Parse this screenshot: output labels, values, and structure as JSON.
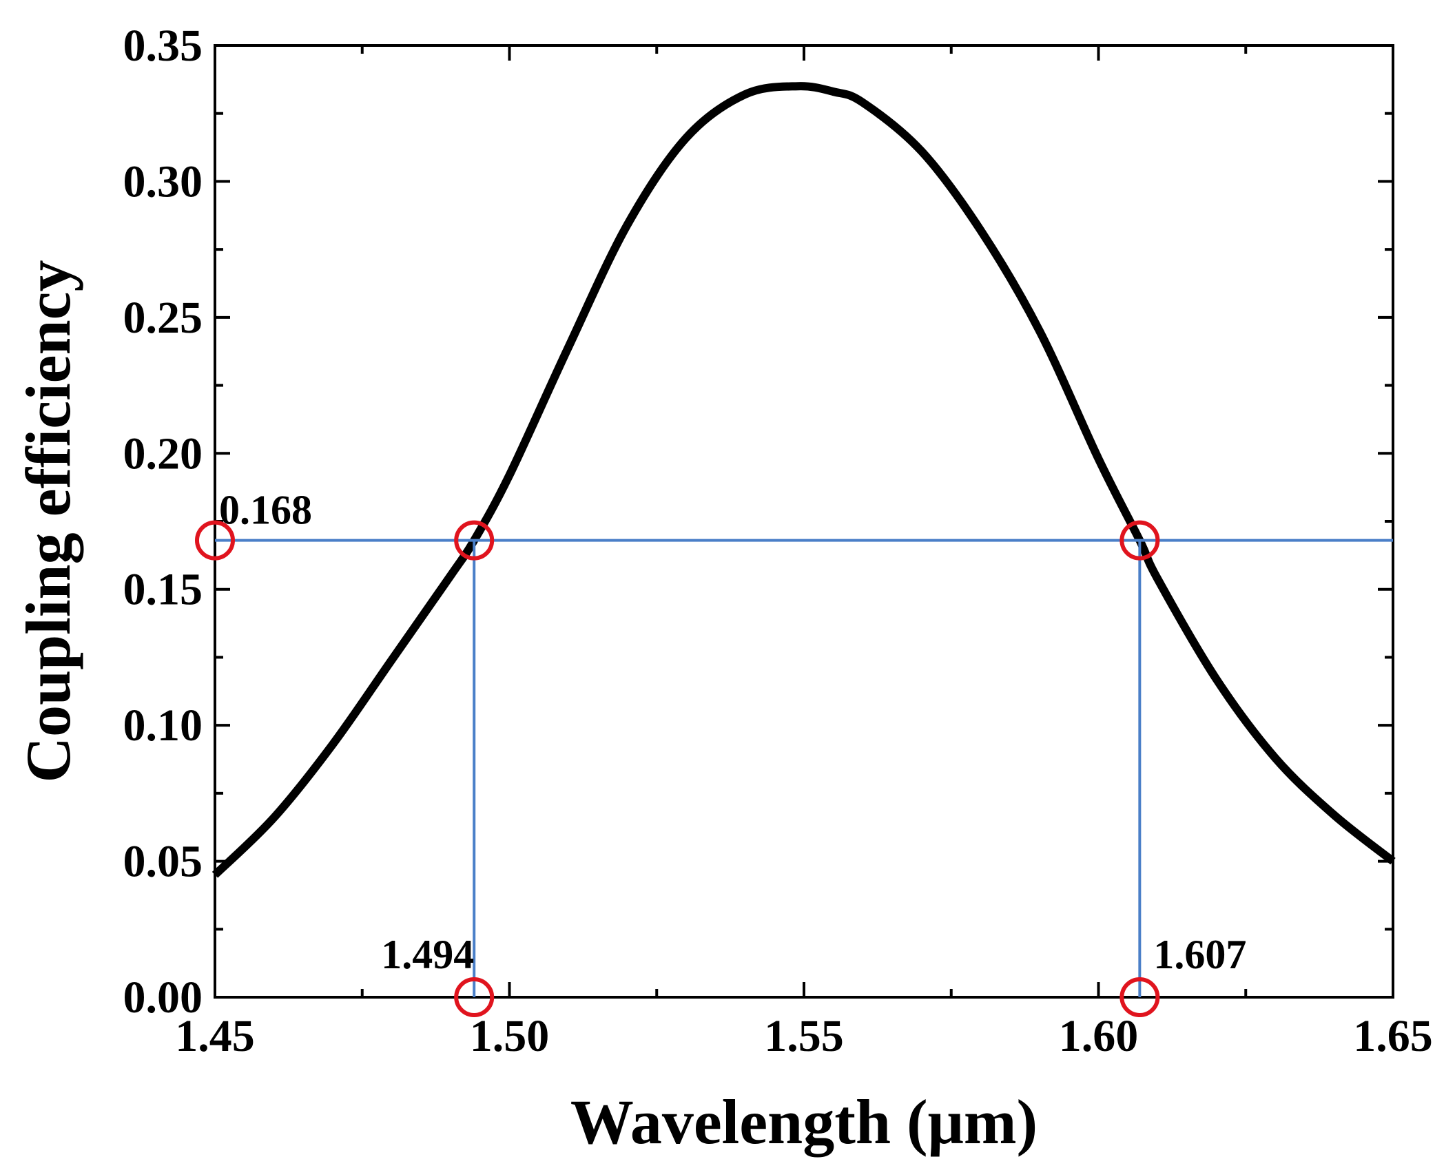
{
  "chart_data": {
    "type": "line",
    "title": "",
    "xlabel": "Wavelength (μm)",
    "ylabel": "Coupling efficiency",
    "xlim": [
      1.45,
      1.65
    ],
    "ylim": [
      0.0,
      0.35
    ],
    "xticks": [
      "1.45",
      "1.50",
      "1.55",
      "1.60",
      "1.65"
    ],
    "yticks": [
      "0.00",
      "0.05",
      "0.10",
      "0.15",
      "0.20",
      "0.25",
      "0.30",
      "0.35"
    ],
    "grid": false,
    "series": [
      {
        "name": "Coupling efficiency",
        "color": "#000000",
        "x": [
          1.45,
          1.46,
          1.47,
          1.48,
          1.49,
          1.494,
          1.5,
          1.51,
          1.52,
          1.53,
          1.54,
          1.549,
          1.555,
          1.56,
          1.57,
          1.58,
          1.59,
          1.6,
          1.607,
          1.61,
          1.62,
          1.63,
          1.64,
          1.65
        ],
        "y": [
          0.045,
          0.066,
          0.093,
          0.124,
          0.155,
          0.168,
          0.192,
          0.239,
          0.284,
          0.316,
          0.332,
          0.335,
          0.333,
          0.329,
          0.311,
          0.282,
          0.245,
          0.198,
          0.168,
          0.154,
          0.117,
          0.088,
          0.067,
          0.05
        ]
      }
    ],
    "reference_lines": {
      "color": "#4a7fc8",
      "horizontal": {
        "y": 0.168,
        "x_from": 1.45,
        "x_to": 1.65
      },
      "vertical": [
        {
          "x": 1.494,
          "y_from": 0.0,
          "y_to": 0.168
        },
        {
          "x": 1.607,
          "y_from": 0.0,
          "y_to": 0.168
        }
      ]
    },
    "markers": {
      "color": "#e0141e",
      "points": [
        {
          "x": 1.45,
          "y": 0.168
        },
        {
          "x": 1.494,
          "y": 0.168
        },
        {
          "x": 1.607,
          "y": 0.168
        },
        {
          "x": 1.494,
          "y": 0.0
        },
        {
          "x": 1.607,
          "y": 0.0
        }
      ]
    },
    "annotations": [
      {
        "text": "0.168",
        "x": 1.45,
        "y": 0.168
      },
      {
        "text": "1.494",
        "x": 1.494,
        "y": 0.0
      },
      {
        "text": "1.607",
        "x": 1.607,
        "y": 0.0
      }
    ]
  }
}
